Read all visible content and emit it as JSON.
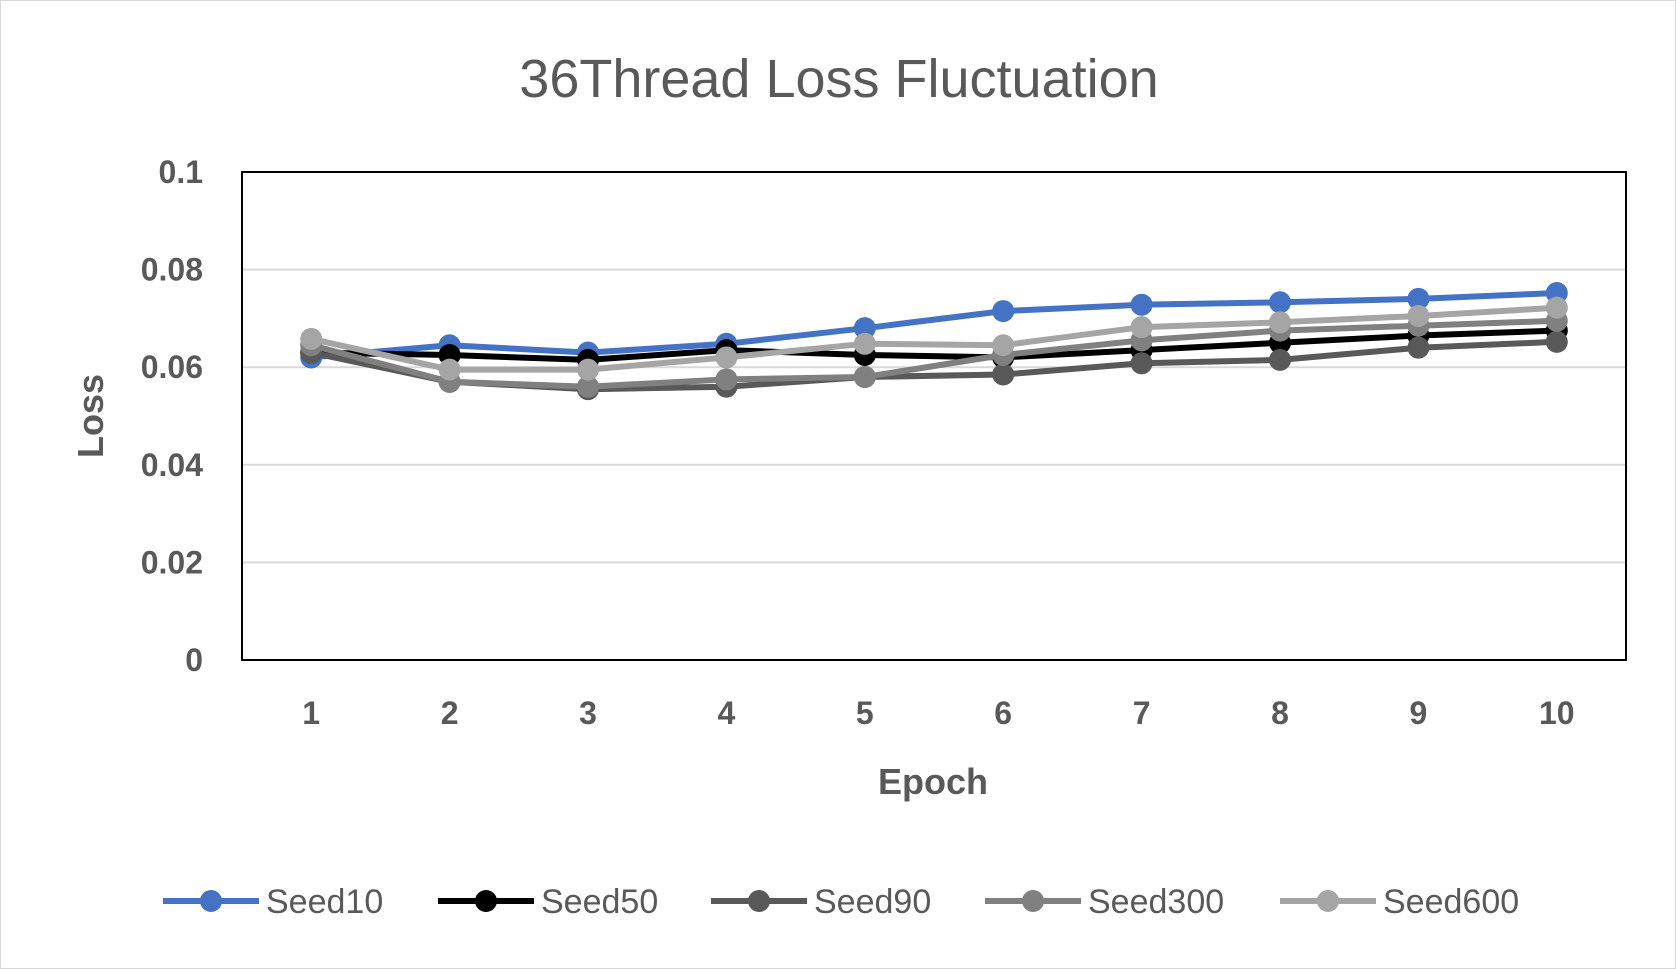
{
  "chart_data": {
    "type": "line",
    "title": "36Thread Loss Fluctuation",
    "xlabel": "Epoch",
    "ylabel": "Loss",
    "categories": [
      "1",
      "2",
      "3",
      "4",
      "5",
      "6",
      "7",
      "8",
      "9",
      "10"
    ],
    "ylim": [
      0,
      0.1
    ],
    "yticks": [
      "0",
      "0.02",
      "0.04",
      "0.06",
      "0.08",
      "0.1"
    ],
    "ytick_values": [
      0,
      0.02,
      0.04,
      0.06,
      0.08,
      0.1
    ],
    "grid": true,
    "legend_position": "bottom",
    "series": [
      {
        "name": "Seed10",
        "color": "#4472c4",
        "values": [
          0.062,
          0.0645,
          0.063,
          0.0648,
          0.068,
          0.0715,
          0.0728,
          0.0733,
          0.074,
          0.0752
        ]
      },
      {
        "name": "Seed50",
        "color": "#000000",
        "values": [
          0.063,
          0.0625,
          0.0615,
          0.0635,
          0.0625,
          0.062,
          0.0635,
          0.065,
          0.0665,
          0.0675
        ]
      },
      {
        "name": "Seed90",
        "color": "#595959",
        "values": [
          0.063,
          0.057,
          0.0555,
          0.056,
          0.058,
          0.0585,
          0.0608,
          0.0615,
          0.064,
          0.0652
        ]
      },
      {
        "name": "Seed300",
        "color": "#808080",
        "values": [
          0.0645,
          0.057,
          0.056,
          0.0575,
          0.058,
          0.0625,
          0.0655,
          0.0675,
          0.0685,
          0.0695
        ]
      },
      {
        "name": "Seed600",
        "color": "#a5a5a5",
        "values": [
          0.0658,
          0.0595,
          0.0595,
          0.062,
          0.0648,
          0.0645,
          0.0682,
          0.0692,
          0.0705,
          0.0722
        ]
      }
    ]
  }
}
